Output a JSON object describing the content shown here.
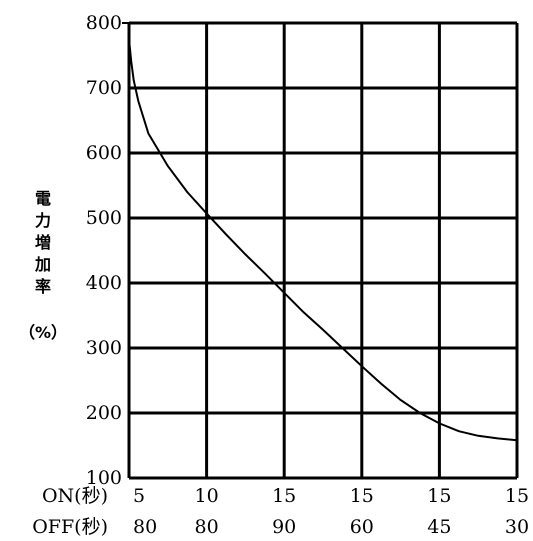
{
  "chart_data": {
    "type": "line",
    "ylabel_chars": [
      "電",
      "力",
      "増",
      "加",
      "率"
    ],
    "ylabel_unit": "（%）",
    "y_ticks": [
      100,
      200,
      300,
      400,
      500,
      600,
      700,
      800
    ],
    "ylim": [
      100,
      800
    ],
    "x_rows": [
      {
        "label": "ON(秒)",
        "values": [
          "5",
          "10",
          "15",
          "15",
          "15",
          "15"
        ]
      },
      {
        "label": "OFF(秒)",
        "values": [
          "80",
          "80",
          "90",
          "60",
          "45",
          "30"
        ]
      }
    ],
    "grid": true,
    "series": [
      {
        "points": [
          [
            0.0,
            775
          ],
          [
            0.03,
            740
          ],
          [
            0.06,
            712
          ],
          [
            0.12,
            680
          ],
          [
            0.25,
            630
          ],
          [
            0.5,
            580
          ],
          [
            0.75,
            540
          ],
          [
            1.0,
            507
          ],
          [
            1.25,
            475
          ],
          [
            1.5,
            444
          ],
          [
            1.75,
            415
          ],
          [
            2.0,
            385
          ],
          [
            2.25,
            355
          ],
          [
            2.5,
            328
          ],
          [
            2.75,
            300
          ],
          [
            3.0,
            272
          ],
          [
            3.25,
            245
          ],
          [
            3.5,
            220
          ],
          [
            3.75,
            200
          ],
          [
            4.0,
            184
          ],
          [
            4.25,
            172
          ],
          [
            4.5,
            165
          ],
          [
            4.75,
            161
          ],
          [
            5.0,
            158
          ]
        ]
      }
    ]
  }
}
